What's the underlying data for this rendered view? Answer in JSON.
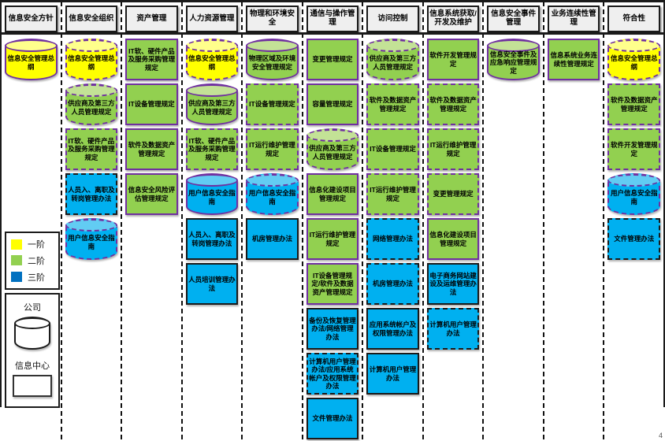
{
  "page": {
    "page_number": "4"
  },
  "colors": {
    "yellow": "#FFFF00",
    "yellow_light": "#FFFF8C",
    "green": "#92D050",
    "green_light": "#C3E296",
    "blue": "#00B0F0",
    "blue_light": "#62CCF3",
    "purple": "#7030A0",
    "black": "#1A1A1A",
    "legend_blue": "#0070C0",
    "header_bg": "#EFEFEF"
  },
  "legend": {
    "tiers": [
      {
        "label": "一阶",
        "color_key": "yellow"
      },
      {
        "label": "二阶",
        "color_key": "green"
      },
      {
        "label": "三阶",
        "color_key": "legend_blue"
      }
    ],
    "company_label": "公司",
    "company_shape": "cylinder",
    "center_label": "信息中心",
    "center_shape": "rectangle"
  },
  "columns": [
    {
      "header": "信息安全方针",
      "items": [
        {
          "label": "信息安全管理总纲",
          "tier": "yellow",
          "shape": "cylinder",
          "border_style": "solid",
          "border_color": "purple"
        }
      ]
    },
    {
      "header": "信息安全组织",
      "items": [
        {
          "label": "信息安全管理总纲",
          "tier": "yellow",
          "shape": "cylinder",
          "border_style": "dashed",
          "border_color": "purple"
        },
        {
          "label": "供应商及第三方人员管理规定",
          "tier": "green",
          "shape": "cylinder",
          "border_style": "dashed",
          "border_color": "purple"
        },
        {
          "label": "IT软、硬件产品及服务采购管理规定",
          "tier": "green",
          "shape": "box",
          "border_style": "dashed",
          "border_color": "purple"
        },
        {
          "label": "人员入、离职及转岗管理办法",
          "tier": "blue",
          "shape": "box",
          "border_style": "dashed",
          "border_color": "black"
        },
        {
          "label": "用户信息安全指南",
          "tier": "blue",
          "shape": "cylinder",
          "border_style": "dashed",
          "border_color": "purple"
        }
      ]
    },
    {
      "header": "资产管理",
      "items": [
        {
          "label": "IT软、硬件产品及服务采购管理规定",
          "tier": "green",
          "shape": "box",
          "border_style": "solid",
          "border_color": "purple"
        },
        {
          "label": "IT设备管理规定",
          "tier": "green",
          "shape": "box",
          "border_style": "solid",
          "border_color": "purple"
        },
        {
          "label": "软件及数据资产管理规定",
          "tier": "green",
          "shape": "box",
          "border_style": "solid",
          "border_color": "purple"
        },
        {
          "label": "信息安全风险评估管理规定",
          "tier": "green",
          "shape": "box",
          "border_style": "solid",
          "border_color": "purple"
        }
      ]
    },
    {
      "header": "人力资源管理",
      "items": [
        {
          "label": "信息安全管理总纲",
          "tier": "yellow",
          "shape": "cylinder",
          "border_style": "dashed",
          "border_color": "purple"
        },
        {
          "label": "供应商及第三方人员管理规定",
          "tier": "green",
          "shape": "cylinder",
          "border_style": "solid",
          "border_color": "purple"
        },
        {
          "label": "IT软、硬件产品及服务采购管理规定",
          "tier": "green",
          "shape": "box",
          "border_style": "dashed",
          "border_color": "purple"
        },
        {
          "label": "用户信息安全指南",
          "tier": "blue",
          "shape": "cylinder",
          "border_style": "solid",
          "border_color": "purple"
        },
        {
          "label": "人员入、离职及转岗管理办法",
          "tier": "blue",
          "shape": "box",
          "border_style": "solid",
          "border_color": "black"
        },
        {
          "label": "人员培训管理办法",
          "tier": "blue",
          "shape": "box",
          "border_style": "solid",
          "border_color": "black"
        }
      ]
    },
    {
      "header": "物理和环境安全",
      "items": [
        {
          "label": "物理区域及环境安全管理规定",
          "tier": "green",
          "shape": "cylinder",
          "border_style": "solid",
          "border_color": "purple"
        },
        {
          "label": "IT设备管理规定",
          "tier": "green",
          "shape": "box",
          "border_style": "dashed",
          "border_color": "purple"
        },
        {
          "label": "IT运行维护管理规定",
          "tier": "green",
          "shape": "box",
          "border_style": "dashed",
          "border_color": "purple"
        },
        {
          "label": "用户信息安全指南",
          "tier": "blue",
          "shape": "cylinder",
          "border_style": "dashed",
          "border_color": "purple"
        },
        {
          "label": "机房管理办法",
          "tier": "blue",
          "shape": "box",
          "border_style": "solid",
          "border_color": "black"
        }
      ]
    },
    {
      "header": "通信与操作管理",
      "items": [
        {
          "label": "变更管理规定",
          "tier": "green",
          "shape": "box",
          "border_style": "solid",
          "border_color": "purple"
        },
        {
          "label": "容量管理规定",
          "tier": "green",
          "shape": "box",
          "border_style": "solid",
          "border_color": "purple"
        },
        {
          "label": "供应商及第三方人员管理规定",
          "tier": "green",
          "shape": "cylinder",
          "border_style": "dashed",
          "border_color": "purple"
        },
        {
          "label": "信息化建设项目管理规定",
          "tier": "green",
          "shape": "box",
          "border_style": "solid",
          "border_color": "purple"
        },
        {
          "label": "IT运行维护管理规定",
          "tier": "green",
          "shape": "box",
          "border_style": "solid",
          "border_color": "purple"
        },
        {
          "label": "IT设备管理规定/软件及数据资产管理规定",
          "tier": "green",
          "shape": "box",
          "border_style": "solid",
          "border_color": "purple"
        },
        {
          "label": "备份及恢复管理办法/网络管理办法",
          "tier": "blue",
          "shape": "box",
          "border_style": "solid",
          "border_color": "black"
        },
        {
          "label": "计算机用户管理办法/应用系统帐户及权限管理办法",
          "tier": "blue",
          "shape": "box",
          "border_style": "dashed",
          "border_color": "black"
        },
        {
          "label": "文件管理办法",
          "tier": "blue",
          "shape": "box",
          "border_style": "solid",
          "border_color": "black"
        }
      ]
    },
    {
      "header": "访问控制",
      "items": [
        {
          "label": "供应商及第三方人员管理规定",
          "tier": "green",
          "shape": "cylinder",
          "border_style": "dashed",
          "border_color": "purple"
        },
        {
          "label": "软件及数据资产管理规定",
          "tier": "green",
          "shape": "box",
          "border_style": "dashed",
          "border_color": "purple"
        },
        {
          "label": "IT设备管理规定",
          "tier": "green",
          "shape": "box",
          "border_style": "dashed",
          "border_color": "purple"
        },
        {
          "label": "IT运行维护管理规定",
          "tier": "green",
          "shape": "box",
          "border_style": "dashed",
          "border_color": "purple"
        },
        {
          "label": "网络管理办法",
          "tier": "blue",
          "shape": "box",
          "border_style": "dashed",
          "border_color": "black"
        },
        {
          "label": "机房管理办法",
          "tier": "blue",
          "shape": "box",
          "border_style": "dashed",
          "border_color": "black"
        },
        {
          "label": "应用系统帐户及权限管理办法",
          "tier": "blue",
          "shape": "box",
          "border_style": "solid",
          "border_color": "black"
        },
        {
          "label": "计算机用户管理办法",
          "tier": "blue",
          "shape": "box",
          "border_style": "solid",
          "border_color": "black"
        }
      ]
    },
    {
      "header": "信息系统获取/开发及维护",
      "items": [
        {
          "label": "软件开发管理规定",
          "tier": "green",
          "shape": "box",
          "border_style": "solid",
          "border_color": "purple"
        },
        {
          "label": "软件及数据资产管理规定",
          "tier": "green",
          "shape": "box",
          "border_style": "dashed",
          "border_color": "purple"
        },
        {
          "label": "IT运行维护管理规定",
          "tier": "green",
          "shape": "box",
          "border_style": "dashed",
          "border_color": "purple"
        },
        {
          "label": "变更管理规定",
          "tier": "green",
          "shape": "box",
          "border_style": "dashed",
          "border_color": "purple"
        },
        {
          "label": "信息化建设项目管理规定",
          "tier": "green",
          "shape": "box",
          "border_style": "solid",
          "border_color": "purple"
        },
        {
          "label": "电子商务网站建设及运维管理办法",
          "tier": "blue",
          "shape": "box",
          "border_style": "solid",
          "border_color": "black"
        },
        {
          "label": "计算机用户管理办法",
          "tier": "blue",
          "shape": "box",
          "border_style": "dashed",
          "border_color": "black"
        }
      ]
    },
    {
      "header": "信息安全事件管理",
      "items": [
        {
          "label": "信息安全事件及应急响应管理规定",
          "tier": "green",
          "shape": "cylinder",
          "border_style": "solid",
          "border_color": "purple"
        }
      ]
    },
    {
      "header": "业务连续性管理",
      "items": [
        {
          "label": "信息系统业务连续性管理规定",
          "tier": "green",
          "shape": "box",
          "border_style": "solid",
          "border_color": "purple"
        }
      ]
    },
    {
      "header": "符合性",
      "items": [
        {
          "label": "信息安全管理总纲",
          "tier": "yellow",
          "shape": "cylinder",
          "border_style": "dashed",
          "border_color": "purple"
        },
        {
          "label": "软件及数据资产管理规定",
          "tier": "green",
          "shape": "box",
          "border_style": "dashed",
          "border_color": "purple"
        },
        {
          "label": "软件开发管理规定",
          "tier": "green",
          "shape": "box",
          "border_style": "dashed",
          "border_color": "purple"
        },
        {
          "label": "用户信息安全指南",
          "tier": "blue",
          "shape": "cylinder",
          "border_style": "dashed",
          "border_color": "purple"
        },
        {
          "label": "文件管理办法",
          "tier": "blue",
          "shape": "box",
          "border_style": "dashed",
          "border_color": "black"
        }
      ]
    }
  ]
}
